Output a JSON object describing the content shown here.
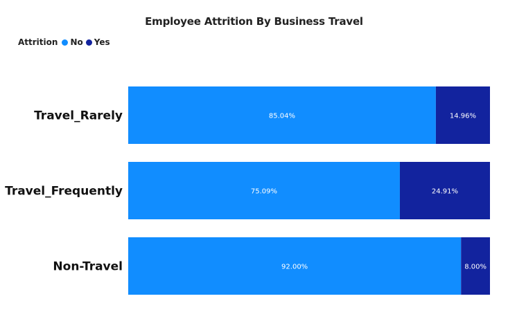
{
  "chart_data": {
    "type": "bar",
    "orientation": "horizontal",
    "stacked": "percent",
    "title": "Employee Attrition By Business Travel",
    "legend_title": "Attrition",
    "legend_position": "top-left",
    "grid": false,
    "categories": [
      "Travel_Rarely",
      "Travel_Frequently",
      "Non-Travel"
    ],
    "series": [
      {
        "name": "No",
        "color": "#118DFF",
        "values": [
          85.04,
          75.09,
          92.0
        ],
        "labels": [
          "85.04%",
          "75.09%",
          "92.00%"
        ]
      },
      {
        "name": "Yes",
        "color": "#12239E",
        "values": [
          14.96,
          24.91,
          8.0
        ],
        "labels": [
          "14.96%",
          "24.91%",
          "8.00%"
        ]
      }
    ],
    "xlim": [
      0,
      100
    ]
  }
}
